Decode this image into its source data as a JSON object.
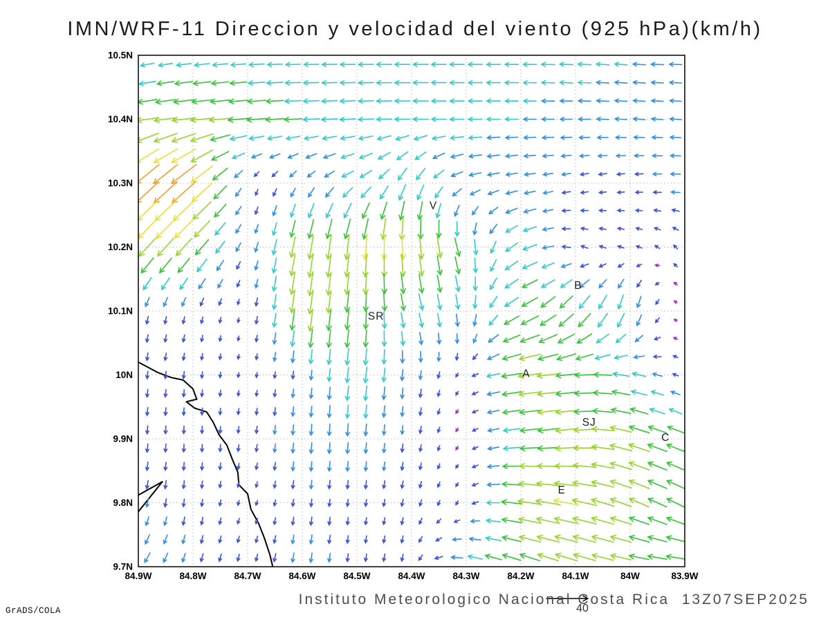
{
  "footer": {
    "institute": "Instituto Meteorologico Nacional Costa Rica  13Z07SEP2025",
    "credit": "GrADS/COLA",
    "ref_label": "40"
  },
  "chart_data": {
    "type": "quiver",
    "title": "IMN/WRF-11 Direccion y velocidad del viento (925 hPa)(km/h)",
    "level": "925 hPa",
    "units": "km/h",
    "reference_vector_kmh": 40,
    "lon_range_W": [
      84.9,
      83.9
    ],
    "lat_range_N": [
      9.7,
      10.5
    ],
    "lon_ticks": [
      {
        "label": "84.9W",
        "value": 84.9
      },
      {
        "label": "84.8W",
        "value": 84.8
      },
      {
        "label": "84.7W",
        "value": 84.7
      },
      {
        "label": "84.6W",
        "value": 84.6
      },
      {
        "label": "84.5W",
        "value": 84.5
      },
      {
        "label": "84.4W",
        "value": 84.4
      },
      {
        "label": "84.3W",
        "value": 84.3
      },
      {
        "label": "84.2W",
        "value": 84.2
      },
      {
        "label": "84.1W",
        "value": 84.1
      },
      {
        "label": "84W",
        "value": 84.0
      },
      {
        "label": "83.9W",
        "value": 83.9
      }
    ],
    "lat_ticks": [
      {
        "label": "10.5N",
        "value": 10.5
      },
      {
        "label": "10.4N",
        "value": 10.4
      },
      {
        "label": "10.3N",
        "value": 10.3
      },
      {
        "label": "10.2N",
        "value": 10.2
      },
      {
        "label": "10.1N",
        "value": 10.1
      },
      {
        "label": "10N",
        "value": 10.0
      },
      {
        "label": "9.9N",
        "value": 9.9
      },
      {
        "label": "9.8N",
        "value": 9.8
      },
      {
        "label": "9.7N",
        "value": 9.7
      }
    ],
    "stations": [
      {
        "label": "V",
        "lon_W": 84.36,
        "lat_N": 10.265
      },
      {
        "label": "B",
        "lon_W": 84.095,
        "lat_N": 10.14
      },
      {
        "label": "SR",
        "lon_W": 84.465,
        "lat_N": 10.092
      },
      {
        "label": "A",
        "lon_W": 84.19,
        "lat_N": 10.002
      },
      {
        "label": "SJ",
        "lon_W": 84.075,
        "lat_N": 9.926
      },
      {
        "label": "C",
        "lon_W": 83.935,
        "lat_N": 9.902
      },
      {
        "label": "E",
        "lon_W": 84.125,
        "lat_N": 9.82
      }
    ],
    "speed_colormap": [
      {
        "max": 5,
        "color": "#a030d8"
      },
      {
        "max": 10,
        "color": "#3c50e0"
      },
      {
        "max": 15,
        "color": "#2f8fe8"
      },
      {
        "max": 20,
        "color": "#2ecbcb"
      },
      {
        "max": 25,
        "color": "#35c435"
      },
      {
        "max": 30,
        "color": "#97d52a"
      },
      {
        "max": 35,
        "color": "#e6e234"
      },
      {
        "max": 40,
        "color": "#f59f2a"
      },
      {
        "max": 45,
        "color": "#ee3524"
      },
      {
        "max": 999,
        "color": "#e832c8"
      }
    ],
    "grid": {
      "lats_N": [
        10.5,
        10.4,
        10.3,
        10.2,
        10.1,
        10.0,
        9.9,
        9.8,
        9.7
      ],
      "lons_W": [
        84.9,
        84.8,
        84.7,
        84.6,
        84.5,
        84.4,
        84.3,
        84.2,
        84.1,
        84.0,
        83.9
      ],
      "u_east_kmh": [
        [
          -14,
          -16,
          -17,
          -17,
          -18,
          -18,
          -17,
          -16,
          -16,
          -15,
          -15
        ],
        [
          -26,
          -28,
          -24,
          -20,
          -18,
          -18,
          -16,
          -15,
          -14,
          -14,
          -13
        ],
        [
          -28,
          -30,
          -2,
          -6,
          -14,
          -8,
          -14,
          -13,
          -9,
          -8,
          -12
        ],
        [
          -20,
          -18,
          -3,
          -5,
          -3,
          2,
          6,
          -18,
          -8,
          -7,
          -4
        ],
        [
          -2,
          -2,
          -1,
          -4,
          -2,
          5,
          2,
          -20,
          -15,
          -4,
          -3
        ],
        [
          -1,
          -1,
          -1,
          -1,
          -2,
          -1,
          -3,
          -28,
          -24,
          -18,
          -4
        ],
        [
          -1,
          0,
          -1,
          -1,
          -1,
          -1,
          -3,
          -22,
          -26,
          -26,
          -20
        ],
        [
          -2,
          -1,
          -2,
          -1,
          -1,
          -2,
          -3,
          -28,
          -30,
          -24,
          -20
        ],
        [
          -8,
          -3,
          -2,
          -2,
          -1,
          -2,
          -18,
          -22,
          -26,
          -24,
          -22
        ]
      ],
      "v_north_kmh": [
        [
          -3,
          -2,
          -1,
          0,
          0,
          0,
          0,
          0,
          1,
          1,
          0
        ],
        [
          -4,
          -3,
          -2,
          -1,
          -1,
          0,
          0,
          0,
          0,
          1,
          1
        ],
        [
          -26,
          -26,
          -6,
          -8,
          -8,
          -18,
          -4,
          -2,
          -2,
          -1,
          0
        ],
        [
          -22,
          -20,
          -8,
          -28,
          -30,
          -30,
          -20,
          -8,
          3,
          2,
          5
        ],
        [
          -9,
          -8,
          -5,
          -30,
          -22,
          -18,
          -16,
          -10,
          -18,
          -20,
          6
        ],
        [
          -9,
          -8,
          -5,
          -10,
          -20,
          -12,
          -3,
          -4,
          -2,
          4,
          2
        ],
        [
          -10,
          -9,
          -8,
          -13,
          -14,
          -9,
          -3,
          -2,
          -3,
          8,
          8
        ],
        [
          -10,
          -9,
          -5,
          -9,
          -8,
          -8,
          -4,
          4,
          6,
          10,
          10
        ],
        [
          -12,
          -10,
          -8,
          -12,
          -9,
          -8,
          4,
          8,
          8,
          4,
          2
        ]
      ]
    },
    "coastline_W_N": [
      [
        [
          84.9,
          10.02
        ],
        [
          84.865,
          10.004
        ],
        [
          84.84,
          9.996
        ],
        [
          84.818,
          9.992
        ],
        [
          84.8,
          9.978
        ],
        [
          84.793,
          9.962
        ],
        [
          84.812,
          9.958
        ],
        [
          84.797,
          9.948
        ],
        [
          84.775,
          9.942
        ],
        [
          84.763,
          9.926
        ],
        [
          84.752,
          9.906
        ],
        [
          84.738,
          9.89
        ],
        [
          84.728,
          9.868
        ],
        [
          84.718,
          9.848
        ],
        [
          84.716,
          9.828
        ],
        [
          84.7,
          9.814
        ],
        [
          84.694,
          9.79
        ],
        [
          84.68,
          9.768
        ],
        [
          84.669,
          9.744
        ],
        [
          84.659,
          9.718
        ],
        [
          84.654,
          9.7
        ]
      ],
      [
        [
          84.9,
          9.786
        ],
        [
          84.856,
          9.833
        ],
        [
          84.9,
          9.812
        ]
      ]
    ],
    "grid_on": true,
    "legend_position": "bottom-center-reference-arrow"
  }
}
